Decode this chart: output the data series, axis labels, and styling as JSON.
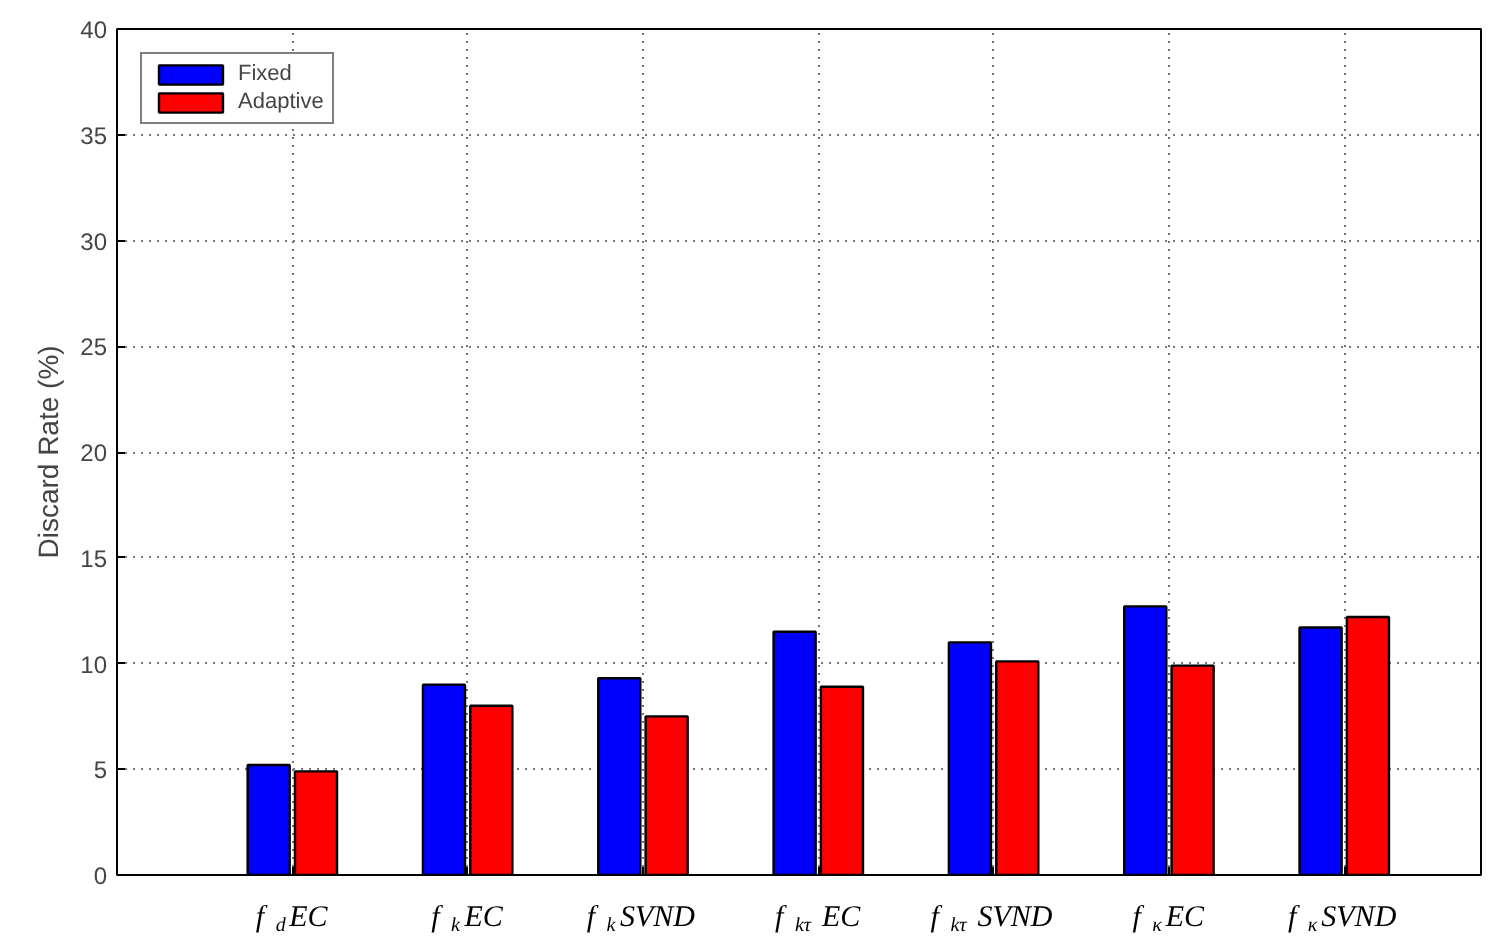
{
  "chart_data": {
    "type": "bar",
    "ylabel": "Discard Rate (%)",
    "categories": [
      "f$_{d}$EC",
      "f$_{k}$EC",
      "f$_{k}$SVND",
      "f$_{kτ}$EC",
      "f$_{kτ}$SVND",
      "f$_{κ}$EC",
      "f$_{κ}$SVND"
    ],
    "series": [
      {
        "name": "Fixed",
        "color": "#0000ff",
        "values": [
          5.2,
          9.0,
          9.3,
          11.5,
          11.0,
          12.7,
          11.7
        ]
      },
      {
        "name": "Adaptive",
        "color": "#ff0000",
        "values": [
          4.9,
          8.0,
          7.5,
          8.9,
          10.1,
          9.9,
          12.2
        ]
      }
    ],
    "ylim": [
      0,
      40
    ],
    "yticks": [
      0,
      5,
      10,
      15,
      20,
      25,
      30,
      35,
      40
    ],
    "grid": true,
    "legend": "top left"
  }
}
